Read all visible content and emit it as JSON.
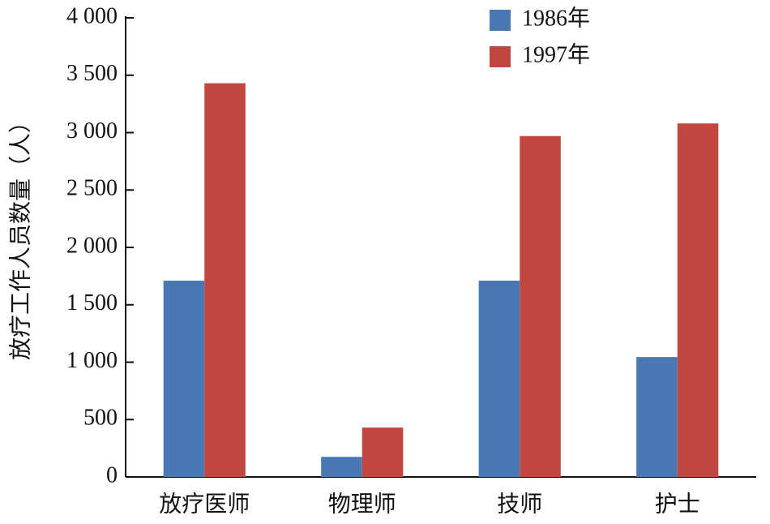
{
  "chart_data": {
    "type": "bar",
    "y_label": "放疗工作人员数量（人）",
    "categories": [
      "放疗医师",
      "物理师",
      "技师",
      "护士"
    ],
    "series": [
      {
        "name": "1986年",
        "color": "#4a78b5",
        "values": [
          1710,
          175,
          1710,
          1045
        ]
      },
      {
        "name": "1997年",
        "color": "#c0463f",
        "values": [
          3430,
          430,
          2970,
          3080
        ]
      }
    ],
    "ylim": [
      0,
      4000
    ],
    "yticks": [
      0,
      500,
      {
        "value": 1000,
        "label": "1 000"
      },
      {
        "value": 1500,
        "label": "1 500"
      },
      {
        "value": 2000,
        "label": "2 000"
      },
      {
        "value": 2500,
        "label": "2 500"
      },
      {
        "value": 3000,
        "label": "3 000"
      },
      {
        "value": 3500,
        "label": "3 500"
      },
      {
        "value": 4000,
        "label": "4 000"
      }
    ],
    "legend": "top-right"
  }
}
